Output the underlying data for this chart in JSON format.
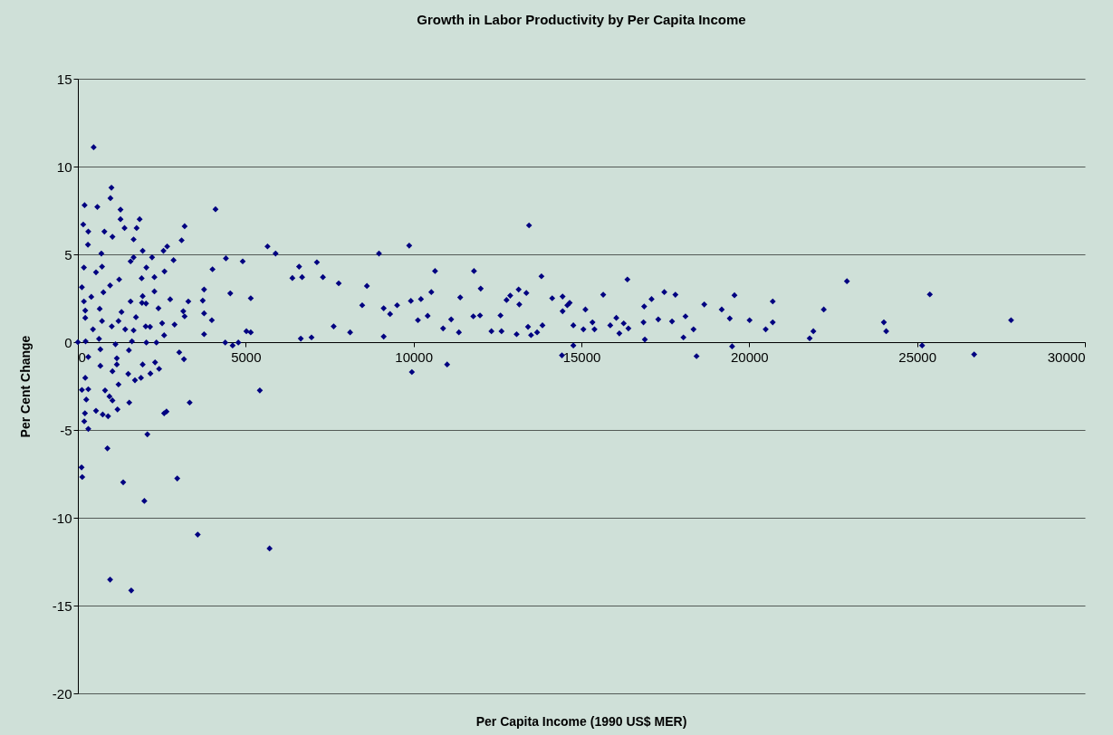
{
  "chart_data": {
    "type": "scatter",
    "title": "Growth in Labor Productivity by Per Capita Income",
    "xlabel": "Per Capita Income (1990 US$ MER)",
    "ylabel": "Per Cent Change",
    "xlim": [
      0,
      30000
    ],
    "xticks": [
      0,
      5000,
      10000,
      15000,
      20000,
      25000,
      30000
    ],
    "ylim": [
      -20,
      15
    ],
    "yticks": [
      -20,
      -15,
      -10,
      -5,
      0,
      5,
      10,
      15
    ],
    "grid": "y",
    "marker": "diamond",
    "series": [
      {
        "color": "#000080",
        "x": [
          5890,
          6590,
          6390,
          6680,
          6640,
          6960,
          7120,
          7300,
          7620,
          7770,
          8110,
          8470,
          8610,
          8970,
          9110,
          9110,
          9300,
          9510,
          9870,
          9920,
          9950,
          10130,
          10220,
          10420,
          10530,
          10640,
          10880,
          11000,
          11120,
          11350,
          11390,
          11800,
          11780,
          12000,
          11980,
          12320,
          12590,
          12620,
          12770,
          12880,
          13070,
          13130,
          13150,
          13360,
          13440,
          13410,
          13500,
          13680,
          13810,
          13840,
          14130,
          14440,
          14420,
          14440,
          14580,
          14650,
          14760,
          14760,
          15060,
          15120,
          15330,
          15390,
          15650,
          15860,
          16040,
          16130,
          16260,
          16370,
          16400,
          16870,
          16850,
          16890,
          17090,
          17290,
          17470,
          17700,
          17800,
          18100,
          18040,
          18340,
          18430,
          18660,
          19180,
          19420,
          19560,
          19490,
          20010,
          20490,
          20700,
          20700,
          21800,
          21910,
          22220,
          22910,
          24010,
          24080,
          25150,
          25380,
          26700,
          27800,
          5710,
          5420,
          4100,
          5650,
          470,
          1000,
          970,
          200,
          580,
          1270,
          1270,
          1840,
          1390,
          1750,
          160,
          310,
          790,
          1030,
          300,
          1660,
          3180,
          3090,
          1930,
          2550,
          2660,
          700,
          2210,
          1660,
          1570,
          2850,
          4410,
          4910,
          4010,
          2580,
          2040,
          180,
          540,
          720,
          1230,
          1900,
          2280,
          960,
          120,
          2280,
          3760,
          4540,
          5150,
          3720,
          3290,
          2750,
          1930,
          1570,
          400,
          760,
          180,
          3760,
          3990,
          3140,
          3180,
          2400,
          2510,
          2880,
          1910,
          2030,
          1730,
          2020,
          2150,
          1660,
          1410,
          1010,
          1210,
          1300,
          220,
          220,
          720,
          650,
          450,
          3760,
          2570,
          5020,
          5150,
          4390,
          4610,
          4780,
          0,
          230,
          630,
          1610,
          2040,
          2340,
          1120,
          1520,
          3020,
          3160,
          310,
          670,
          670,
          1160,
          1160,
          1930,
          2300,
          2420,
          2160,
          1880,
          1700,
          1500,
          1030,
          220,
          120,
          310,
          250,
          810,
          940,
          1030,
          1210,
          1530,
          1180,
          540,
          740,
          900,
          210,
          190,
          310,
          2570,
          2640,
          3330,
          2070,
          880,
          110,
          130,
          1350,
          2960,
          1980,
          3570,
          960,
          1590
        ],
        "values": [
          5.05,
          4.3,
          3.65,
          3.7,
          0.2,
          0.27,
          4.55,
          3.7,
          0.9,
          3.35,
          0.56,
          2.1,
          3.2,
          5.05,
          1.93,
          0.32,
          1.6,
          2.1,
          5.5,
          2.35,
          -1.7,
          1.25,
          2.45,
          1.5,
          2.85,
          4.05,
          0.78,
          -1.27,
          1.3,
          0.56,
          2.55,
          4.05,
          1.47,
          3.05,
          1.52,
          0.62,
          1.52,
          0.62,
          2.4,
          2.65,
          0.45,
          3.0,
          2.15,
          2.8,
          6.65,
          0.87,
          0.4,
          0.56,
          3.75,
          0.96,
          2.5,
          2.6,
          -0.75,
          1.76,
          2.1,
          2.24,
          0.96,
          -0.19,
          0.73,
          1.86,
          1.13,
          0.73,
          2.7,
          0.96,
          1.38,
          0.5,
          1.07,
          3.57,
          0.78,
          2.03,
          1.13,
          0.15,
          2.45,
          1.3,
          2.85,
          1.18,
          2.7,
          1.47,
          0.27,
          0.73,
          -0.8,
          2.15,
          1.86,
          1.35,
          2.67,
          -0.24,
          1.25,
          0.73,
          2.32,
          1.13,
          0.22,
          0.62,
          1.86,
          3.47,
          1.13,
          0.62,
          -0.19,
          2.72,
          -0.7,
          1.25,
          -11.75,
          -2.75,
          7.57,
          5.45,
          11.1,
          8.8,
          8.2,
          7.8,
          7.7,
          7.55,
          7.0,
          7.0,
          6.5,
          6.5,
          6.7,
          6.3,
          6.3,
          6.0,
          5.55,
          5.85,
          6.6,
          5.8,
          5.2,
          5.2,
          5.45,
          5.05,
          4.83,
          4.83,
          4.6,
          4.67,
          4.77,
          4.6,
          4.15,
          4.03,
          4.25,
          4.25,
          3.98,
          4.3,
          3.57,
          3.64,
          3.7,
          3.23,
          3.13,
          2.89,
          3.0,
          2.78,
          2.5,
          2.37,
          2.32,
          2.44,
          2.62,
          2.32,
          2.58,
          2.84,
          2.32,
          1.64,
          1.25,
          1.76,
          1.47,
          1.93,
          1.08,
          1.0,
          2.24,
          2.2,
          1.42,
          0.9,
          0.87,
          0.67,
          0.73,
          0.9,
          1.2,
          1.72,
          1.8,
          1.38,
          1.2,
          1.9,
          0.73,
          0.45,
          0.39,
          0.62,
          0.56,
          -0.02,
          -0.19,
          -0.02,
          0,
          0.05,
          0.19,
          0.05,
          -0.02,
          -0.02,
          -0.12,
          -0.46,
          -0.58,
          -0.97,
          -0.84,
          -0.41,
          -1.35,
          -0.92,
          -1.27,
          -1.27,
          -1.15,
          -1.52,
          -1.79,
          -2.03,
          -2.17,
          -1.81,
          -1.66,
          -2.03,
          -2.72,
          -2.68,
          -3.27,
          -2.75,
          -3.09,
          -3.32,
          -2.41,
          -3.44,
          -3.83,
          -3.91,
          -4.12,
          -4.22,
          -4.05,
          -4.51,
          -4.94,
          -4.05,
          -3.95,
          -3.44,
          -5.25,
          -6.05,
          -7.13,
          -7.68,
          -7.98,
          -7.76,
          -9.04,
          -10.96,
          -13.52,
          -14.14
        ]
      }
    ]
  }
}
